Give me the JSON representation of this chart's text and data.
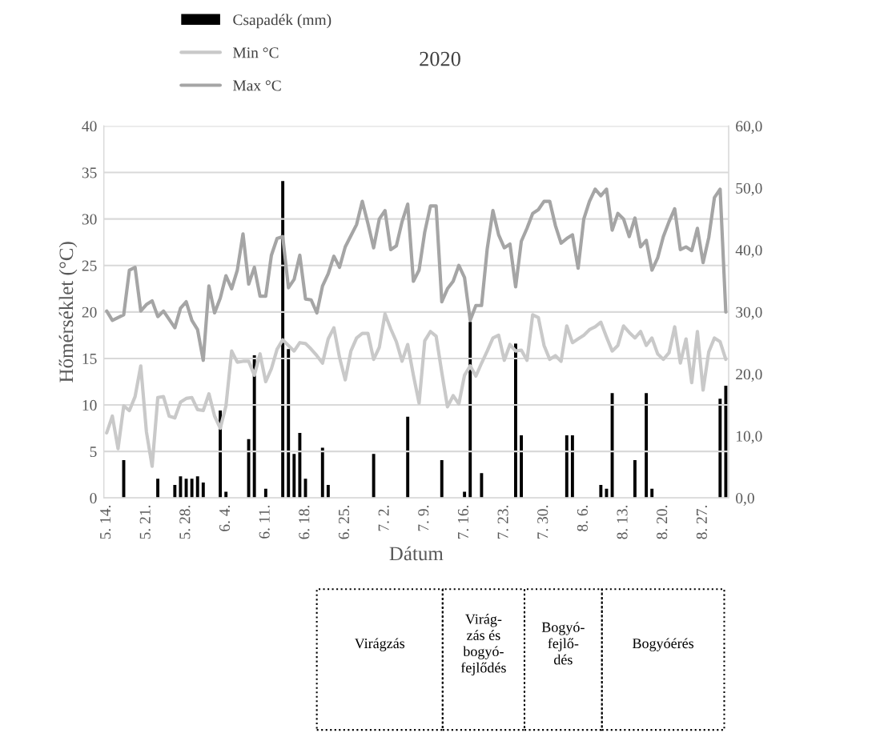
{
  "chart_data": {
    "type": "line",
    "title": "2020",
    "xlabel": "Dátum",
    "ylabel": "Hőmérséklet (°C)",
    "categories": [
      "5. 14.",
      null,
      null,
      null,
      null,
      null,
      null,
      "5. 21.",
      null,
      null,
      null,
      null,
      null,
      null,
      "5. 28.",
      null,
      null,
      null,
      null,
      null,
      null,
      "6. 4.",
      null,
      null,
      null,
      null,
      null,
      null,
      "6. 11.",
      null,
      null,
      null,
      null,
      null,
      null,
      "6. 18.",
      null,
      null,
      null,
      null,
      null,
      null,
      "6. 25.",
      null,
      null,
      null,
      null,
      null,
      null,
      "7. 2.",
      null,
      null,
      null,
      null,
      null,
      null,
      "7. 9.",
      null,
      null,
      null,
      null,
      null,
      null,
      "7. 16.",
      null,
      null,
      null,
      null,
      null,
      null,
      "7. 23.",
      null,
      null,
      null,
      null,
      null,
      null,
      "7. 30.",
      null,
      null,
      null,
      null,
      null,
      null,
      "8. 6.",
      null,
      null,
      null,
      null,
      null,
      null,
      "8. 13.",
      null,
      null,
      null,
      null,
      null,
      null,
      "8. 20.",
      null,
      null,
      null,
      null,
      null,
      null,
      "8. 27.",
      null,
      null,
      null,
      null
    ],
    "series": [
      {
        "name": "Csapadék (mm)",
        "type": "bar",
        "axis": "y2",
        "color": "#000000",
        "values": [
          0,
          0,
          0,
          6.1,
          0,
          0,
          0,
          0,
          0,
          3.1,
          0,
          0,
          2.1,
          3.5,
          3.1,
          3.1,
          3.5,
          2.5,
          0,
          0,
          14.1,
          1.0,
          0,
          0,
          0,
          9.5,
          23.0,
          0,
          1.5,
          0,
          0,
          51.1,
          24.0,
          7.1,
          10.5,
          3.1,
          0,
          0,
          8.1,
          2.1,
          0,
          0,
          0,
          0,
          0,
          0,
          0,
          7.1,
          0,
          0,
          0,
          0,
          0,
          13.1,
          0,
          0,
          0,
          0,
          0,
          6.1,
          0,
          0,
          0,
          1.0,
          28.4,
          0,
          4.0,
          0,
          0,
          0,
          0,
          0,
          24.9,
          10.1,
          0,
          0,
          0,
          0,
          0,
          0,
          0,
          10.1,
          10.1,
          0,
          0,
          0,
          0,
          2.1,
          1.5,
          16.9,
          0,
          0,
          0,
          6.1,
          0,
          16.9,
          1.5,
          0,
          0,
          0,
          0,
          0,
          0,
          0,
          0,
          0,
          0,
          0,
          16.0,
          18.1
        ]
      },
      {
        "name": "Min °C",
        "color": "#c9c9c9",
        "values": [
          7.0,
          8.8,
          5.3,
          9.9,
          9.4,
          10.9,
          14.2,
          7.1,
          3.4,
          10.8,
          10.9,
          8.8,
          8.6,
          10.3,
          10.7,
          10.8,
          9.5,
          9.4,
          11.2,
          8.8,
          7.5,
          9.9,
          15.8,
          14.6,
          14.7,
          14.7,
          13.2,
          15.5,
          12.5,
          13.9,
          16.0,
          17.0,
          16.4,
          15.8,
          16.7,
          16.6,
          16.0,
          15.3,
          14.5,
          17.1,
          18.3,
          15.1,
          12.7,
          15.8,
          17.2,
          17.7,
          17.7,
          14.9,
          16.2,
          19.8,
          18.2,
          16.8,
          14.7,
          16.5,
          13.2,
          10.2,
          16.9,
          17.9,
          17.4,
          13.5,
          9.8,
          11.0,
          10.1,
          13.2,
          14.2,
          13.1,
          14.5,
          15.8,
          17.2,
          17.5,
          14.8,
          16.5,
          15.8,
          15.9,
          14.8,
          19.7,
          19.4,
          16.4,
          14.9,
          15.3,
          14.7,
          18.5,
          16.7,
          17.1,
          17.5,
          18.1,
          18.4,
          18.9,
          17.3,
          15.8,
          16.4,
          18.5,
          17.8,
          17.2,
          17.9,
          16.4,
          17.2,
          15.5,
          14.9,
          15.6,
          18.4,
          14.5,
          17.1,
          12.4,
          17.9,
          11.6,
          15.7,
          17.2,
          16.8,
          14.9
        ]
      },
      {
        "name": "Max °C",
        "color": "#a5a5a5",
        "values": [
          20.1,
          19.1,
          19.4,
          19.7,
          24.5,
          24.8,
          20.1,
          20.8,
          21.2,
          19.5,
          20.1,
          19.2,
          18.3,
          20.4,
          21.1,
          19.1,
          18.1,
          14.8,
          22.8,
          19.9,
          21.5,
          23.9,
          22.5,
          24.5,
          28.4,
          23.0,
          24.8,
          21.7,
          21.7,
          26.1,
          27.9,
          28.1,
          22.6,
          23.5,
          26.1,
          21.4,
          21.3,
          19.9,
          22.8,
          24.1,
          26.0,
          24.8,
          27.0,
          28.2,
          29.4,
          31.9,
          29.5,
          26.9,
          30.0,
          30.9,
          26.7,
          27.1,
          29.7,
          31.6,
          23.3,
          24.5,
          28.6,
          31.4,
          31.4,
          21.1,
          22.5,
          23.3,
          25.0,
          23.7,
          19.1,
          20.7,
          20.7,
          26.8,
          30.9,
          28.3,
          26.9,
          27.3,
          22.7,
          27.6,
          29.0,
          30.6,
          31.0,
          31.9,
          31.9,
          29.3,
          27.4,
          27.9,
          28.3,
          24.7,
          30.0,
          31.9,
          33.2,
          32.5,
          33.2,
          28.8,
          30.6,
          30.0,
          28.1,
          30.1,
          27.0,
          27.7,
          24.5,
          25.8,
          28.1,
          29.7,
          31.1,
          26.7,
          27.0,
          26.6,
          29.0,
          25.3,
          28.0,
          32.3,
          33.2,
          20.0
        ]
      }
    ],
    "ylim": [
      0,
      40
    ],
    "yticks": [
      0,
      5,
      10,
      15,
      20,
      25,
      30,
      35,
      40
    ],
    "y2lim": [
      0,
      60
    ],
    "y2ticks": [
      {
        "value": 0,
        "label": "0,0"
      },
      {
        "value": 10,
        "label": "10,0"
      },
      {
        "value": 20,
        "label": "20,0"
      },
      {
        "value": 30,
        "label": "30,0"
      },
      {
        "value": 40,
        "label": "40,0"
      },
      {
        "value": 50,
        "label": "50,0"
      },
      {
        "value": 60,
        "label": "60,0"
      }
    ],
    "grid": "y",
    "legend": "top left",
    "marker": "none",
    "line_style": "solid",
    "annotations": [
      "Virágzás",
      "Virág-\nzás és\nbogyó-\nfejlődés",
      "Bogyó-\nfejlő-\ndés",
      "Bogyóérés"
    ]
  }
}
